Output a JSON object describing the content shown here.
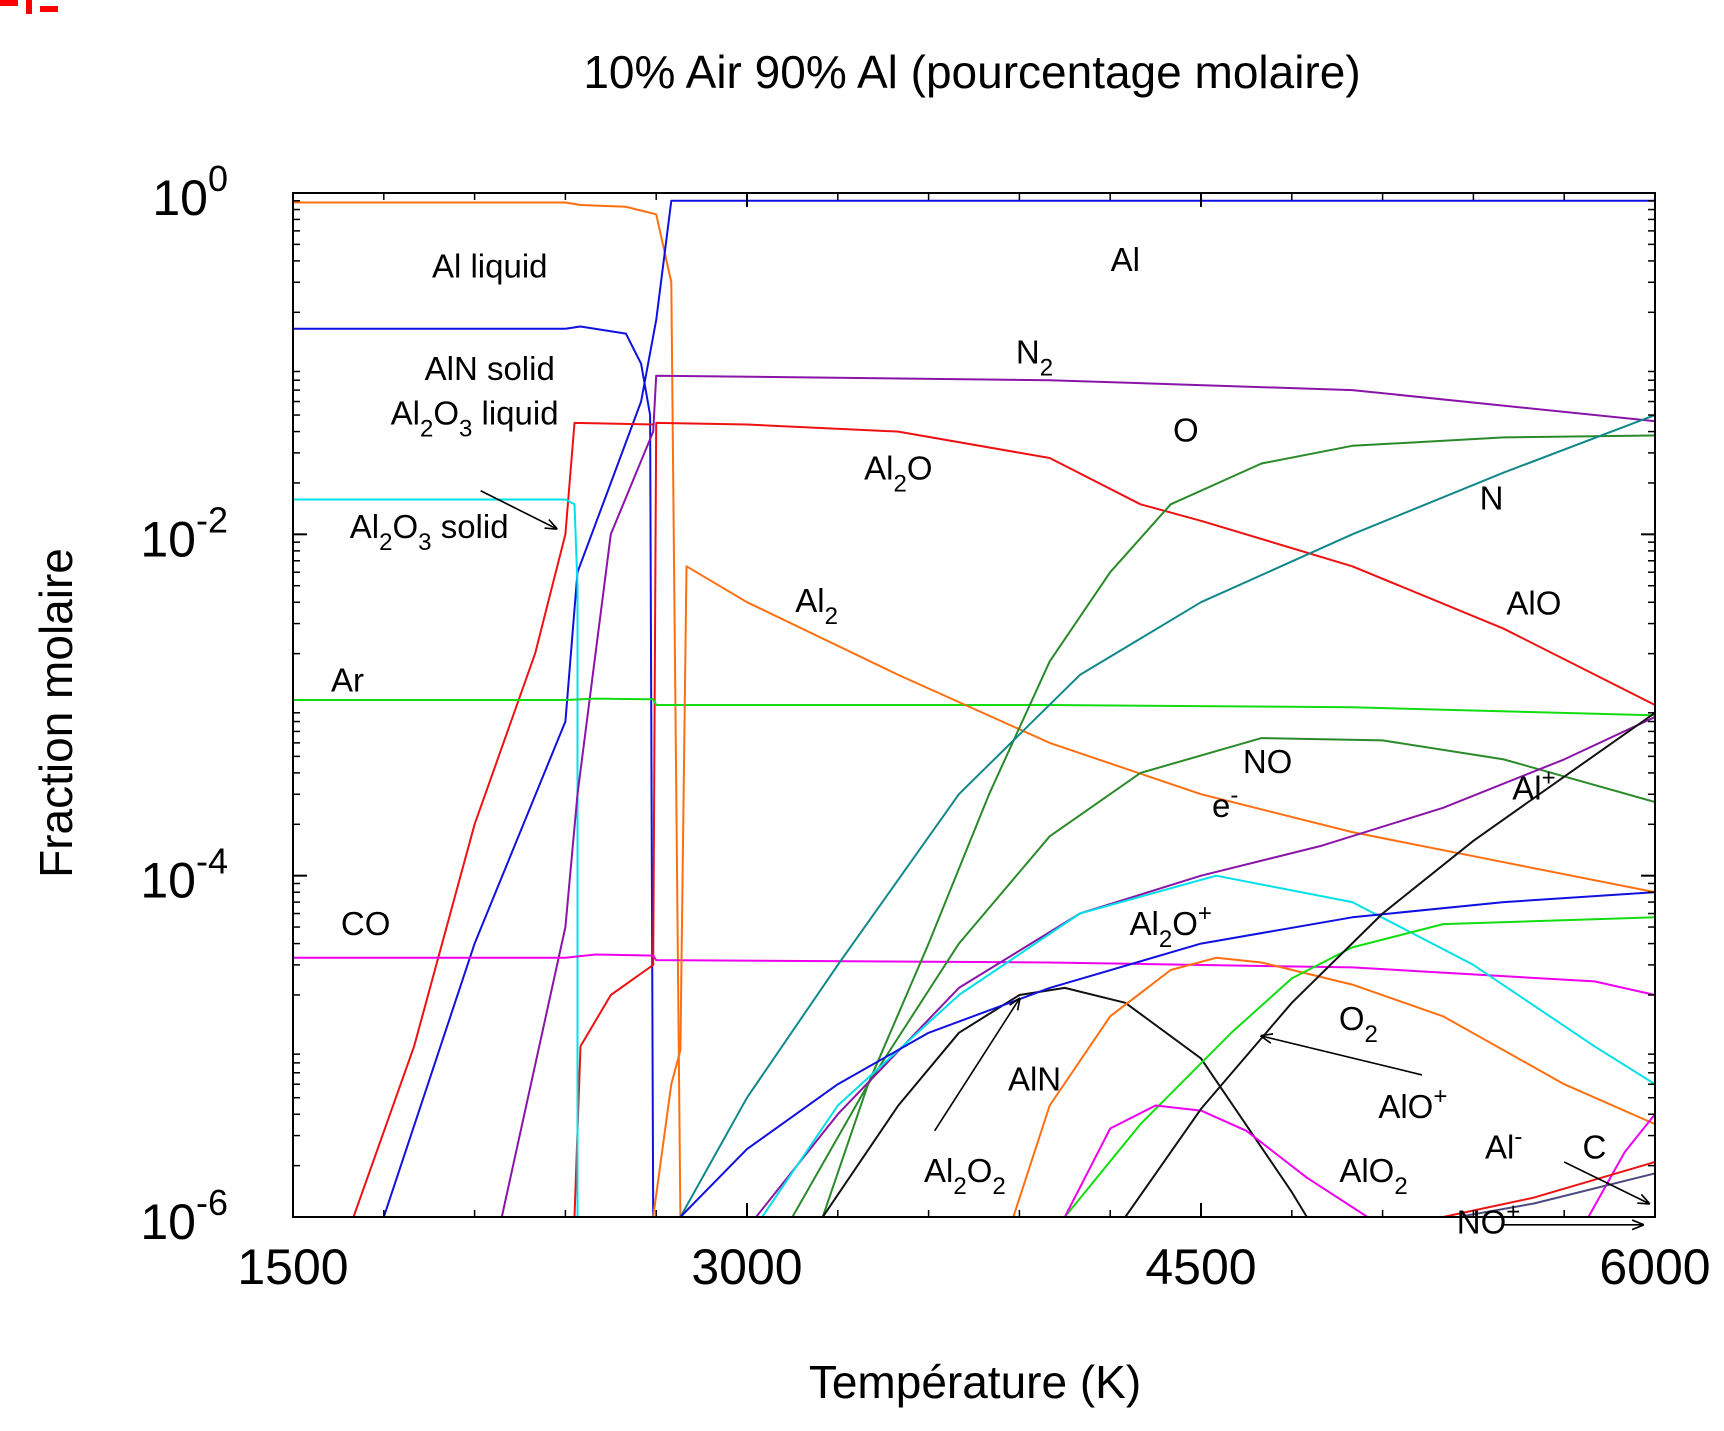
{
  "chart_data": {
    "type": "line",
    "title": "10% Air 90% Al (pourcentage molaire)",
    "xlabel": "Température (K)",
    "ylabel": "Fraction molaire",
    "xlim": [
      1500,
      6000
    ],
    "ylim": [
      1e-06,
      1
    ],
    "yscale": "log",
    "xticks": [
      "1500",
      "3000",
      "4500",
      "6000"
    ],
    "yticks": [
      {
        "base": "10",
        "exp": "0",
        "value": 1
      },
      {
        "base": "10",
        "exp": "-2",
        "value": 0.01
      },
      {
        "base": "10",
        "exp": "-4",
        "value": 0.0001
      },
      {
        "base": "10",
        "exp": "-6",
        "value": 1e-06
      }
    ],
    "grid": false,
    "series": [
      {
        "name": "Al liquid",
        "color": "#ff6f10",
        "x": [
          1500,
          2400,
          2450,
          2600,
          2700,
          2750,
          2780
        ],
        "y": [
          0.88,
          0.88,
          0.85,
          0.83,
          0.75,
          0.3,
          1e-06
        ]
      },
      {
        "name": "AlN solid",
        "color": "#1010e0",
        "x": [
          1500,
          2400,
          2450,
          2600,
          2650,
          2680,
          2690
        ],
        "y": [
          0.16,
          0.16,
          0.165,
          0.15,
          0.1,
          0.05,
          1e-06
        ]
      },
      {
        "name": "Al",
        "color": "#1010e0",
        "x": [
          1800,
          2100,
          2400,
          2440,
          2550,
          2650,
          2700,
          2750,
          6000
        ],
        "y": [
          1e-06,
          4e-05,
          0.0008,
          0.006,
          0.02,
          0.06,
          0.18,
          0.9,
          0.9
        ]
      },
      {
        "name": "Al2O3 liquid",
        "color": "#ee1111",
        "x": [
          1700,
          1900,
          2100,
          2300,
          2400,
          2430,
          2690
        ],
        "y": [
          1e-06,
          1e-05,
          0.0002,
          0.002,
          0.01,
          0.045,
          0.044
        ]
      },
      {
        "name": "Al2O",
        "color": "#ee1111",
        "x": [
          2430,
          2450,
          2550,
          2690,
          2700,
          3000,
          3500,
          4000,
          4300
        ],
        "y": [
          1e-06,
          1e-05,
          2e-05,
          3e-05,
          0.045,
          0.044,
          0.04,
          0.028,
          0.015
        ]
      },
      {
        "name": "Al2O3 solid",
        "color": "#00e0e8",
        "x": [
          1500,
          2400,
          2430,
          2440,
          2440
        ],
        "y": [
          0.016,
          0.016,
          0.015,
          0.005,
          1e-06
        ]
      },
      {
        "name": "N2",
        "color": "#8a14a8",
        "x": [
          2190,
          2400,
          2440,
          2550,
          2690,
          2700,
          4000,
          5000,
          6000
        ],
        "y": [
          1e-06,
          5e-05,
          0.0003,
          0.01,
          0.04,
          0.085,
          0.08,
          0.07,
          0.046
        ]
      },
      {
        "name": "Ar",
        "color": "#11dd11",
        "x": [
          1500,
          2400,
          2500,
          2690,
          2700,
          4000,
          5000,
          6000
        ],
        "y": [
          0.00107,
          0.00107,
          0.00109,
          0.00108,
          0.001,
          0.001,
          0.00097,
          0.00087
        ]
      },
      {
        "name": "CO",
        "color": "#ee00ee",
        "x": [
          1500,
          2400,
          2500,
          2690,
          2700,
          4000,
          5000,
          5800,
          6000
        ],
        "y": [
          3.3e-05,
          3.3e-05,
          3.45e-05,
          3.4e-05,
          3.2e-05,
          3.1e-05,
          2.9e-05,
          2.4e-05,
          2e-05
        ]
      },
      {
        "name": "Al2",
        "color": "#ff6f10",
        "x": [
          2690,
          2750,
          2780,
          2800,
          3000,
          3500,
          4000,
          4500,
          5000,
          5500,
          6000
        ],
        "y": [
          1e-06,
          6e-06,
          9.5e-06,
          0.0065,
          0.004,
          0.0015,
          0.0006,
          0.0003,
          0.00018,
          0.00012,
          8e-05
        ]
      },
      {
        "name": "AlO",
        "color": "#ee1111",
        "x": [
          4300,
          4500,
          5000,
          5500,
          6000
        ],
        "y": [
          0.015,
          0.012,
          0.0065,
          0.0028,
          0.001
        ]
      },
      {
        "name": "O",
        "color": "#2a8a2a",
        "x": [
          3250,
          3400,
          3600,
          3800,
          4000,
          4200,
          4400,
          4700,
          5000,
          5500,
          6000
        ],
        "y": [
          1e-06,
          6e-06,
          4e-05,
          0.0003,
          0.0018,
          0.006,
          0.015,
          0.026,
          0.033,
          0.037,
          0.038
        ]
      },
      {
        "name": "N",
        "color": "#10888a",
        "x": [
          2780,
          3000,
          3300,
          3700,
          4100,
          4500,
          5000,
          5500,
          6000
        ],
        "y": [
          1e-06,
          5e-06,
          3e-05,
          0.0003,
          0.0015,
          0.004,
          0.01,
          0.023,
          0.05
        ]
      },
      {
        "name": "NO",
        "color": "#2a8a2a",
        "x": [
          3150,
          3400,
          3700,
          4000,
          4300,
          4700,
          5100,
          5500,
          6000
        ],
        "y": [
          1e-06,
          6e-06,
          4e-05,
          0.00017,
          0.0004,
          0.00064,
          0.00062,
          0.00048,
          0.00027
        ]
      },
      {
        "name": "e-",
        "color": "#8a14a8",
        "x": [
          3030,
          3300,
          3700,
          4100,
          4500,
          4900,
          5300,
          5700,
          6000
        ],
        "y": [
          1e-06,
          4e-06,
          2.2e-05,
          6e-05,
          0.0001,
          0.00015,
          0.00025,
          0.00048,
          0.00085
        ]
      },
      {
        "name": "Al2O+",
        "color": "#00e0e8",
        "x": [
          3050,
          3300,
          3700,
          4100,
          4550,
          5000,
          5400,
          5800,
          6000
        ],
        "y": [
          1e-06,
          4.5e-06,
          2e-05,
          6e-05,
          0.0001,
          7e-05,
          3e-05,
          1e-05,
          6e-06
        ]
      },
      {
        "name": "AlN",
        "color": "#111111",
        "x": [
          3250,
          3500,
          3700,
          3900,
          4050,
          4250,
          4500,
          4800,
          4850
        ],
        "y": [
          1e-06,
          4.5e-06,
          1.2e-05,
          2e-05,
          2.2e-05,
          1.8e-05,
          8.5e-06,
          1.4e-06,
          1e-06
        ]
      },
      {
        "name": "Al2O2",
        "color": "#1010e0",
        "x": [
          2780,
          3000,
          3300,
          3600,
          4000,
          4500,
          5000,
          5500,
          6000
        ],
        "y": [
          1e-06,
          2.5e-06,
          6e-06,
          1.2e-05,
          2.2e-05,
          4e-05,
          5.7e-05,
          7e-05,
          8e-05
        ]
      },
      {
        "name": "O2",
        "color": "#ff6f10",
        "x": [
          3880,
          4000,
          4200,
          4400,
          4550,
          4700,
          5000,
          5300,
          5700,
          6000
        ],
        "y": [
          1e-06,
          4.5e-06,
          1.5e-05,
          2.8e-05,
          3.3e-05,
          3.1e-05,
          2.3e-05,
          1.5e-05,
          6e-06,
          3.5e-06
        ]
      },
      {
        "name": "AlO+",
        "color": "#11dd11",
        "x": [
          4050,
          4300,
          4600,
          4800,
          5000,
          5300,
          6000
        ],
        "y": [
          1e-06,
          3.5e-06,
          1.2e-05,
          2.5e-05,
          3.8e-05,
          5.2e-05,
          5.7e-05
        ]
      },
      {
        "name": "AlO2",
        "color": "#ee00ee",
        "x": [
          4050,
          4200,
          4350,
          4500,
          4650,
          4850,
          5050
        ],
        "y": [
          1e-06,
          3.3e-06,
          4.5e-06,
          4.2e-06,
          3.2e-06,
          1.7e-06,
          1e-06
        ]
      },
      {
        "name": "Al+",
        "color": "#111111",
        "x": [
          4250,
          4500,
          4800,
          5100,
          5400,
          5700,
          6000
        ],
        "y": [
          1e-06,
          4.3e-06,
          1.8e-05,
          6e-05,
          0.00016,
          0.00038,
          0.0009
        ]
      },
      {
        "name": "C",
        "color": "#ee00ee",
        "x": [
          5780,
          5900,
          6000
        ],
        "y": [
          1e-06,
          2.4e-06,
          4e-06
        ]
      },
      {
        "name": "Al-",
        "color": "#ee1111",
        "x": [
          5300,
          5600,
          6000
        ],
        "y": [
          1e-06,
          1.3e-06,
          2.1e-06
        ]
      },
      {
        "name": "NO+",
        "color": "#4a4a80",
        "x": [
          5350,
          5600,
          6000
        ],
        "y": [
          1e-06,
          1.2e-06,
          1.8e-06
        ]
      }
    ],
    "annotations": [
      {
        "text": "Al liquid",
        "x": 2150,
        "y": 0.32
      },
      {
        "text": "AlN solid",
        "x": 2150,
        "y": 0.08
      },
      {
        "text": "Al",
        "x": 4250,
        "y": 0.35
      },
      {
        "text": "N",
        "sub": "2",
        "x": 3950,
        "y": 0.1
      },
      {
        "text": "Al",
        "sub": "2",
        "sup": "",
        "mid": "O",
        "sub2": "3",
        "tail": " liquid",
        "x": 2100,
        "y": 0.044
      },
      {
        "text": "O",
        "x": 4450,
        "y": 0.035
      },
      {
        "text": "Al",
        "sub": "2",
        "mid": "O",
        "x": 3500,
        "y": 0.021
      },
      {
        "text": "Al",
        "sub": "2",
        "mid": "O",
        "sub2": "3",
        "tail": " solid",
        "x": 1950,
        "y": 0.0095
      },
      {
        "text": "N",
        "x": 5460,
        "y": 0.014
      },
      {
        "text": "Al",
        "sub": "2",
        "x": 3230,
        "y": 0.0035
      },
      {
        "text": "AlO",
        "x": 5600,
        "y": 0.0034
      },
      {
        "text": "Ar",
        "x": 1680,
        "y": 0.0012
      },
      {
        "text": "NO",
        "x": 4720,
        "y": 0.0004
      },
      {
        "text": "e",
        "sup": "-",
        "x": 4580,
        "y": 0.00022
      },
      {
        "text": "Al",
        "sup": "+",
        "x": 5600,
        "y": 0.00028
      },
      {
        "text": "CO",
        "x": 1740,
        "y": 4.5e-05
      },
      {
        "text": "Al",
        "sub": "2",
        "mid": "O",
        "sup2": "+",
        "x": 4400,
        "y": 4.5e-05
      },
      {
        "text": "O",
        "sub": "2",
        "x": 5020,
        "y": 1.25e-05
      },
      {
        "text": "AlN",
        "x": 3950,
        "y": 5.5e-06
      },
      {
        "text": "AlO",
        "sup": "+",
        "x": 5200,
        "y": 3.8e-06
      },
      {
        "text": "Al",
        "sup": "-",
        "x": 5500,
        "y": 2.2e-06
      },
      {
        "text": "C",
        "x": 5800,
        "y": 2.2e-06
      },
      {
        "text": "Al",
        "sub": "2",
        "mid": "O",
        "sub2": "2",
        "x": 3720,
        "y": 1.6e-06
      },
      {
        "text": "AlO",
        "sub": "2",
        "x": 5070,
        "y": 1.6e-06
      },
      {
        "text": "NO",
        "sup": "+",
        "x": 5450,
        "y": 8e-07
      }
    ],
    "arrows": [
      {
        "from": [
          2120,
          0.018
        ],
        "to": [
          2370,
          0.0108
        ]
      },
      {
        "from": [
          3620,
          3.2e-06
        ],
        "to": [
          3900,
          1.9e-05
        ]
      },
      {
        "from": [
          5230,
          6.8e-06
        ],
        "to": [
          4700,
          1.15e-05
        ]
      },
      {
        "from": [
          5700,
          2.1e-06
        ],
        "to": [
          5980,
          1.2e-06
        ]
      },
      {
        "from": [
          5500,
          9e-07
        ],
        "to": [
          5960,
          9e-07
        ]
      }
    ]
  }
}
